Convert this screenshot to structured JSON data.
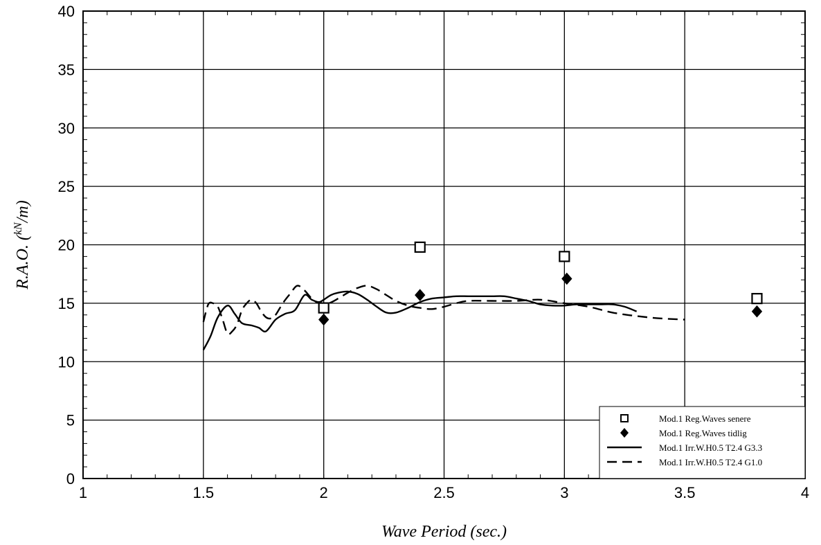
{
  "chart_data": {
    "type": "scatter",
    "title": "",
    "xlabel": "Wave Period (sec.)",
    "ylabel_main": "R.A.O. (",
    "ylabel_unit_num": "kN",
    "ylabel_unit_den": "/m)",
    "xlim": [
      1,
      4
    ],
    "ylim": [
      0,
      40
    ],
    "x_ticks": [
      {
        "value": 1,
        "label": "1"
      },
      {
        "value": 1.5,
        "label": "1.5"
      },
      {
        "value": 2,
        "label": "2"
      },
      {
        "value": 2.5,
        "label": "2.5"
      },
      {
        "value": 3,
        "label": "3"
      },
      {
        "value": 3.5,
        "label": "3.5"
      },
      {
        "value": 4,
        "label": "4"
      }
    ],
    "y_ticks": [
      {
        "value": 0,
        "label": "0"
      },
      {
        "value": 5,
        "label": "5"
      },
      {
        "value": 10,
        "label": "10"
      },
      {
        "value": 15,
        "label": "15"
      },
      {
        "value": 20,
        "label": "20"
      },
      {
        "value": 25,
        "label": "25"
      },
      {
        "value": 30,
        "label": "30"
      },
      {
        "value": 35,
        "label": "35"
      },
      {
        "value": 40,
        "label": "40"
      }
    ],
    "grid": true,
    "legend_position": "bottom-right",
    "series": [
      {
        "name": "Mod.1 Reg.Waves senere",
        "marker": "open-square",
        "color": "#000000",
        "x": [
          2.0,
          2.4,
          3.0,
          3.8
        ],
        "y": [
          14.6,
          19.8,
          19.0,
          15.4
        ]
      },
      {
        "name": "Mod.1 Reg.Waves tidlig",
        "marker": "filled-diamond",
        "color": "#000000",
        "x": [
          2.0,
          2.4,
          3.01,
          3.8
        ],
        "y": [
          13.6,
          15.7,
          17.1,
          14.3
        ]
      },
      {
        "name": "Mod.1 Irr.W.H0.5 T2.4 G3.3",
        "line": "solid",
        "color": "#000000",
        "x": [
          1.5,
          1.53,
          1.56,
          1.6,
          1.63,
          1.66,
          1.7,
          1.73,
          1.76,
          1.8,
          1.84,
          1.88,
          1.92,
          1.95,
          1.98,
          2.0,
          2.03,
          2.06,
          2.1,
          2.14,
          2.18,
          2.22,
          2.26,
          2.3,
          2.35,
          2.4,
          2.45,
          2.5,
          2.55,
          2.6,
          2.65,
          2.7,
          2.75,
          2.8,
          2.85,
          2.9,
          2.95,
          3.0,
          3.05,
          3.1,
          3.15,
          3.2,
          3.25,
          3.3
        ],
        "y": [
          11.0,
          12.2,
          13.8,
          14.8,
          14.1,
          13.3,
          13.1,
          12.9,
          12.6,
          13.6,
          14.1,
          14.4,
          15.7,
          15.3,
          15.1,
          15.3,
          15.7,
          15.9,
          16.0,
          15.8,
          15.3,
          14.7,
          14.2,
          14.2,
          14.6,
          15.1,
          15.4,
          15.5,
          15.6,
          15.6,
          15.6,
          15.6,
          15.6,
          15.4,
          15.2,
          14.9,
          14.8,
          14.8,
          14.9,
          14.9,
          14.9,
          14.9,
          14.7,
          14.3
        ]
      },
      {
        "name": "Mod.1 Irr.W.H0.5 T2.4 G1.0",
        "line": "dashed",
        "color": "#000000",
        "x": [
          1.5,
          1.52,
          1.54,
          1.56,
          1.58,
          1.6,
          1.62,
          1.64,
          1.66,
          1.68,
          1.7,
          1.72,
          1.74,
          1.76,
          1.78,
          1.8,
          1.83,
          1.86,
          1.89,
          1.92,
          1.95,
          1.98,
          2.02,
          2.06,
          2.1,
          2.14,
          2.18,
          2.22,
          2.26,
          2.3,
          2.35,
          2.4,
          2.45,
          2.5,
          2.55,
          2.6,
          2.7,
          2.8,
          2.9,
          3.0,
          3.1,
          3.2,
          3.3,
          3.4,
          3.5
        ],
        "y": [
          13.4,
          14.9,
          15.0,
          14.7,
          13.6,
          12.4,
          12.6,
          13.2,
          14.4,
          15.0,
          15.3,
          15.0,
          14.3,
          13.8,
          13.7,
          14.0,
          15.0,
          15.8,
          16.5,
          16.1,
          15.4,
          15.0,
          15.0,
          15.4,
          15.9,
          16.3,
          16.5,
          16.2,
          15.7,
          15.2,
          14.8,
          14.6,
          14.5,
          14.7,
          15.0,
          15.2,
          15.2,
          15.2,
          15.3,
          15.0,
          14.7,
          14.2,
          13.9,
          13.7,
          13.6
        ]
      }
    ]
  }
}
